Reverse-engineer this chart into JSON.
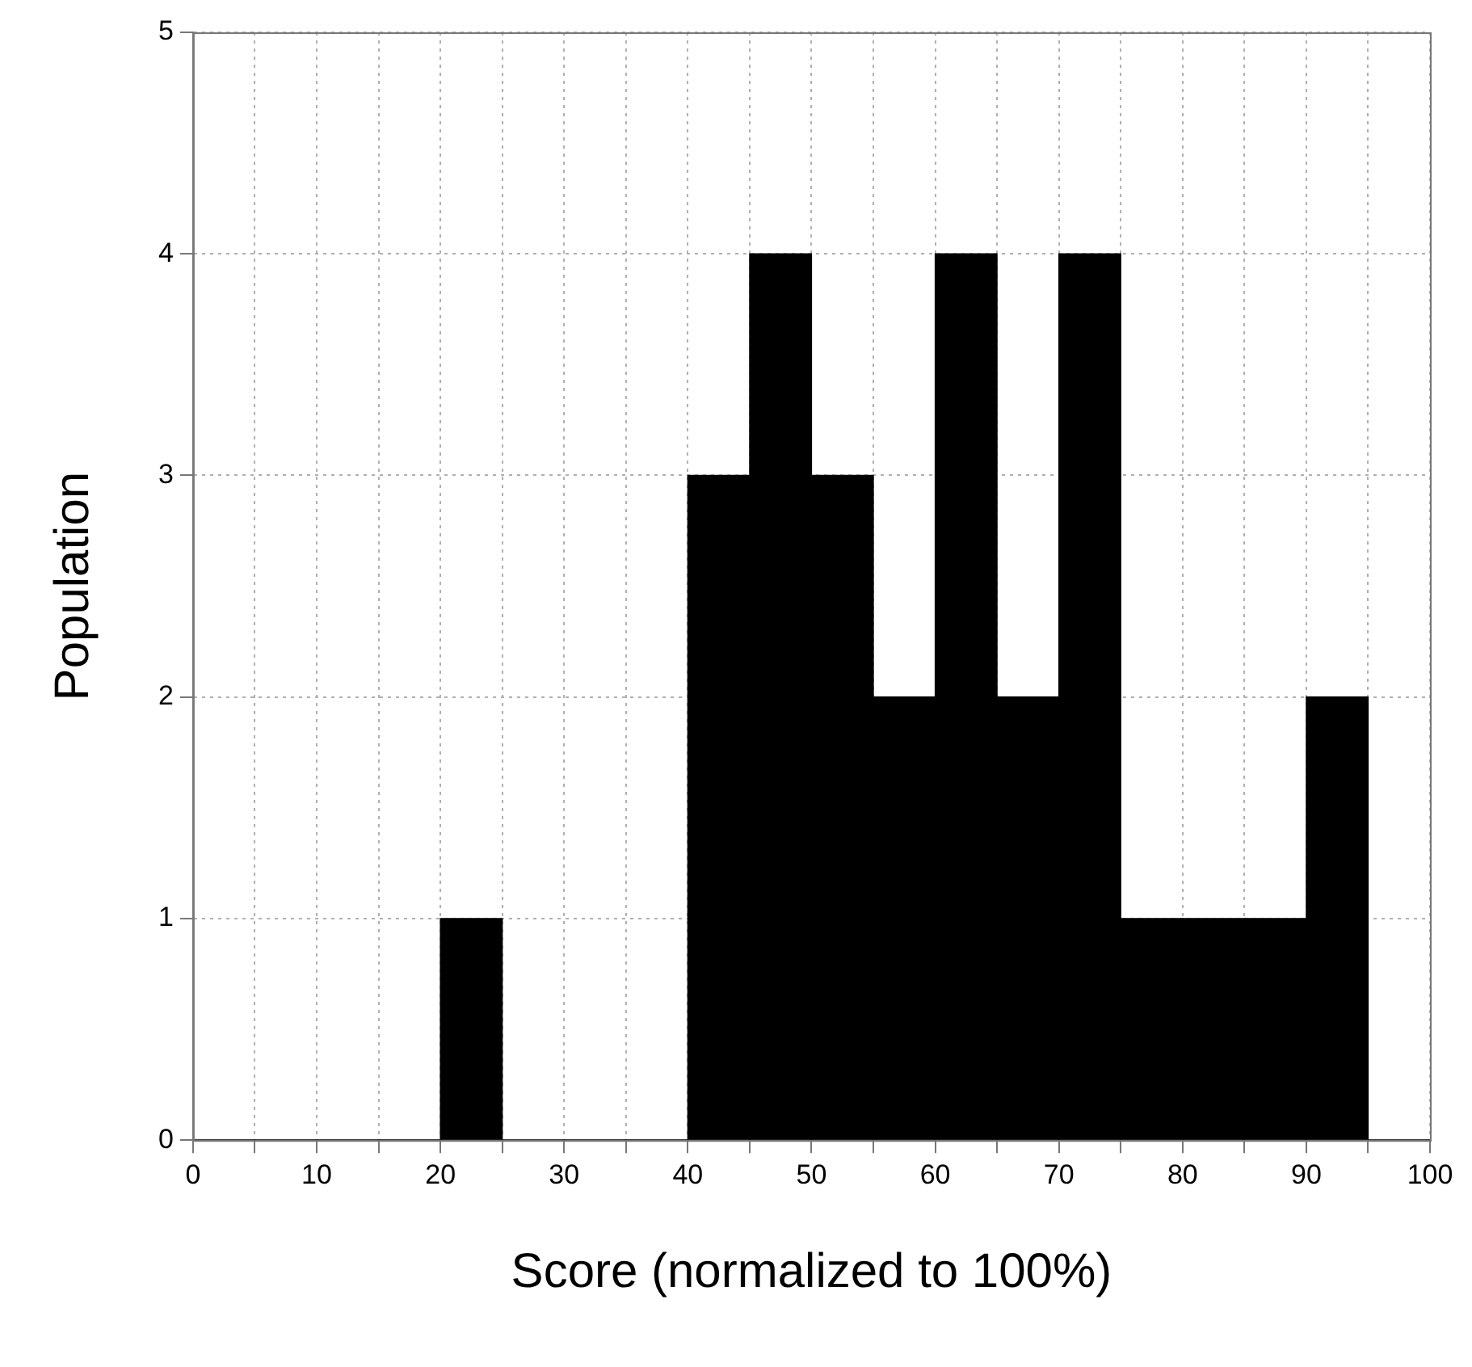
{
  "chart_data": {
    "type": "histogram",
    "xlabel": "Score (normalized to 100%)",
    "ylabel": "Population",
    "bins": [
      0,
      5,
      10,
      15,
      20,
      25,
      30,
      35,
      40,
      45,
      50,
      55,
      60,
      65,
      70,
      75,
      80,
      85,
      90,
      95,
      100
    ],
    "values": [
      0,
      0,
      0,
      0,
      1,
      0,
      0,
      0,
      3,
      4,
      3,
      2,
      4,
      2,
      4,
      1,
      1,
      1,
      2,
      0
    ],
    "color": "#000000",
    "xlim": [
      0,
      100
    ],
    "xticks": [
      0,
      {
        "value": 5,
        "label": null
      },
      10,
      {
        "value": 15,
        "label": null
      },
      20,
      {
        "value": 25,
        "label": null
      },
      30,
      {
        "value": 35,
        "label": null
      },
      40,
      {
        "value": 45,
        "label": null
      },
      50,
      {
        "value": 55,
        "label": null
      },
      60,
      {
        "value": 65,
        "label": null
      },
      70,
      {
        "value": 75,
        "label": null
      },
      80,
      {
        "value": 85,
        "label": null
      },
      90,
      {
        "value": 95,
        "label": null
      },
      100
    ],
    "ylim": [
      0,
      5
    ],
    "yticks": [
      0,
      1,
      2,
      3,
      4,
      5
    ],
    "grid": true,
    "legend": false
  }
}
